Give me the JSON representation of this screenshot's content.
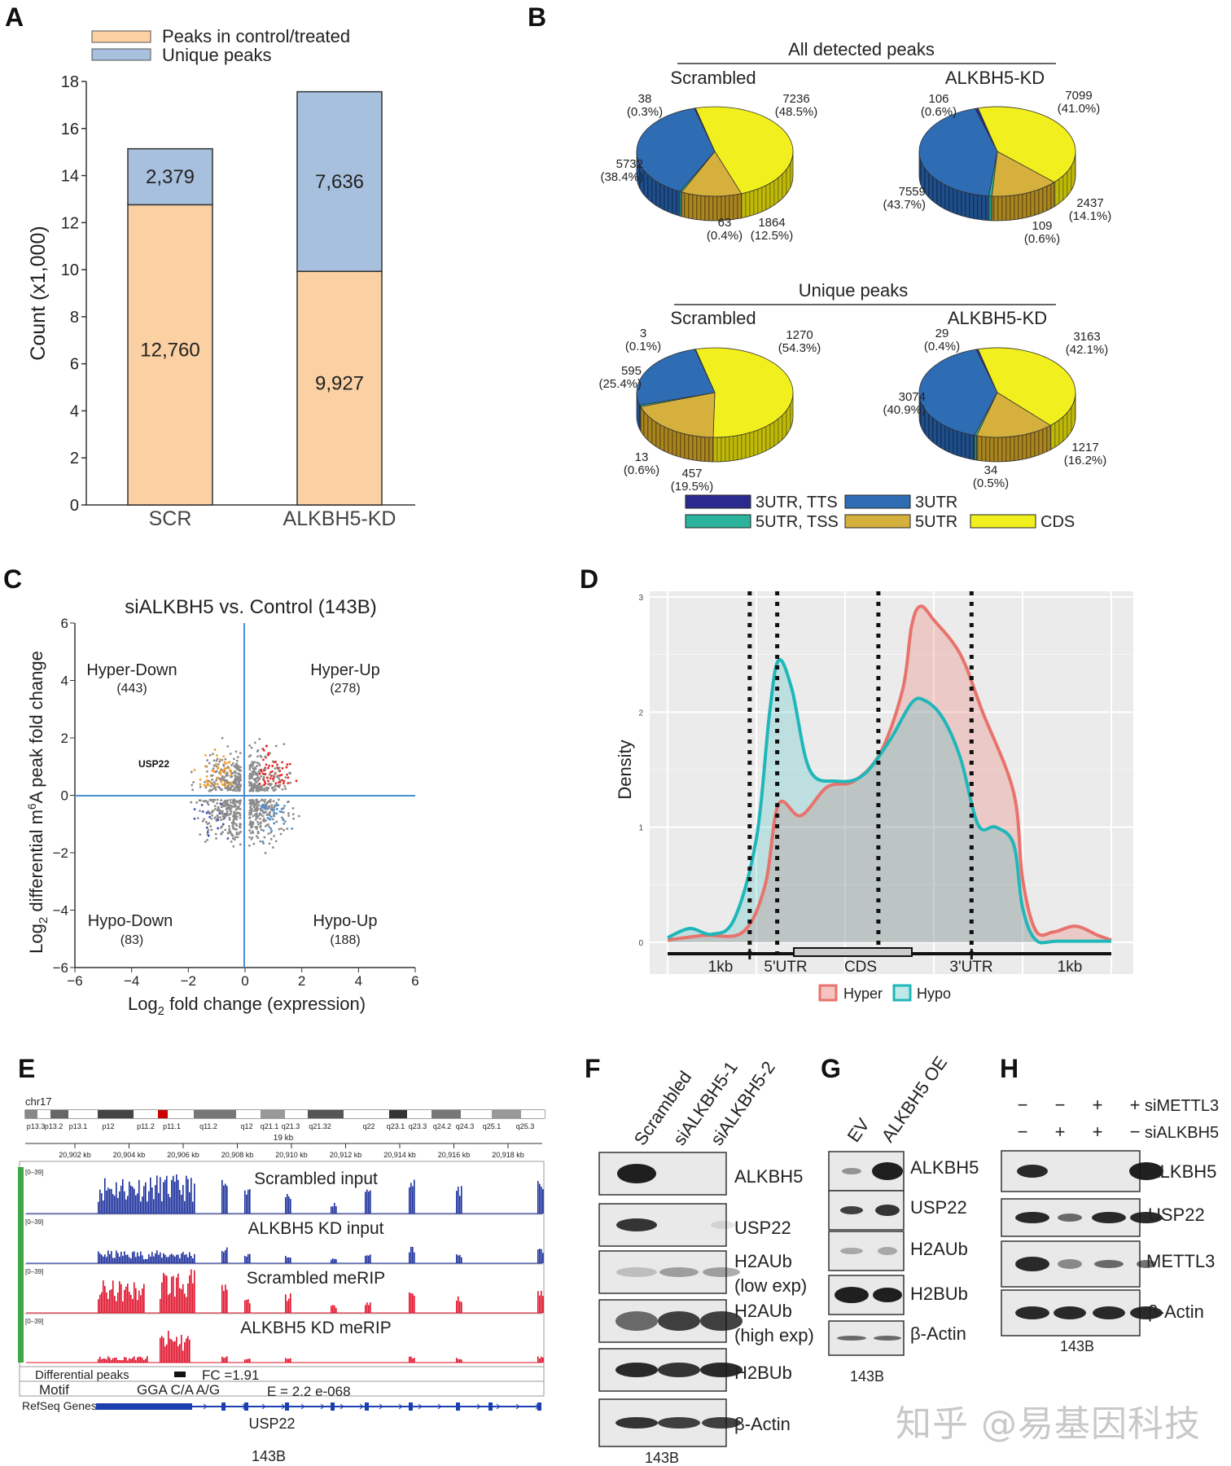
{
  "panels": {
    "A": "A",
    "B": "B",
    "C": "C",
    "D": "D",
    "E": "E",
    "F": "F",
    "G": "G",
    "H": "H"
  },
  "colors": {
    "control": "#fbd0a2",
    "unique": "#a7c0dd",
    "hyper": "#e8736c",
    "hypo": "#1fb7b9",
    "cds": "#f2ef1e",
    "utr3": "#2e6cb4",
    "utr5": "#d6b03d",
    "utr3tts": "#2b2b8f",
    "utr5tss": "#2bb39c"
  },
  "chart_data": [
    {
      "type": "bar",
      "panel": "A",
      "categories": [
        "SCR",
        "ALKBH5-KD"
      ],
      "series": [
        {
          "name": "Peaks in control/treated",
          "values": [
            12.76,
            9.927
          ],
          "labels": [
            "12,760",
            "9,927"
          ]
        },
        {
          "name": "Unique peaks",
          "values": [
            2.379,
            7.636
          ],
          "labels": [
            "2,379",
            "7,636"
          ]
        }
      ],
      "ylabel": "Count (x1,000)",
      "ylim": [
        0,
        18
      ],
      "yticks": [
        "0",
        "2",
        "4",
        "6",
        "8",
        "10",
        "12",
        "14",
        "16",
        "18"
      ],
      "stacked": true
    },
    {
      "type": "pie",
      "panel": "B",
      "groups": [
        {
          "title": "All detected peaks",
          "pies": [
            {
              "name": "Scrambled",
              "slices": [
                {
                  "label": "CDS",
                  "value": 7236,
                  "text": "7236",
                  "pct": "(48.5%)"
                },
                {
                  "label": "5UTR",
                  "value": 1864,
                  "text": "1864",
                  "pct": "(12.5%)"
                },
                {
                  "label": "5UTR, TSS",
                  "value": 63,
                  "text": "63",
                  "pct": "(0.4%)"
                },
                {
                  "label": "3UTR",
                  "value": 5732,
                  "text": "5732",
                  "pct": "(38.4%)"
                },
                {
                  "label": "3UTR, TTS",
                  "value": 38,
                  "text": "38",
                  "pct": "(0.3%)"
                }
              ]
            },
            {
              "name": "ALKBH5-KD",
              "slices": [
                {
                  "label": "CDS",
                  "value": 7099,
                  "text": "7099",
                  "pct": "(41.0%)"
                },
                {
                  "label": "5UTR",
                  "value": 2437,
                  "text": "2437",
                  "pct": "(14.1%)"
                },
                {
                  "label": "5UTR, TSS",
                  "value": 109,
                  "text": "109",
                  "pct": "(0.6%)"
                },
                {
                  "label": "3UTR",
                  "value": 7559,
                  "text": "7559",
                  "pct": "(43.7%)"
                },
                {
                  "label": "3UTR, TTS",
                  "value": 106,
                  "text": "106",
                  "pct": "(0.6%)"
                }
              ]
            }
          ]
        },
        {
          "title": "Unique peaks",
          "pies": [
            {
              "name": "Scrambled",
              "slices": [
                {
                  "label": "CDS",
                  "value": 1270,
                  "text": "1270",
                  "pct": "(54.3%)"
                },
                {
                  "label": "5UTR",
                  "value": 457,
                  "text": "457",
                  "pct": "(19.5%)"
                },
                {
                  "label": "5UTR, TSS",
                  "value": 13,
                  "text": "13",
                  "pct": "(0.6%)"
                },
                {
                  "label": "3UTR",
                  "value": 595,
                  "text": "595",
                  "pct": "(25.4%)"
                },
                {
                  "label": "3UTR, TTS",
                  "value": 3,
                  "text": "3",
                  "pct": "(0.1%)"
                }
              ]
            },
            {
              "name": "ALKBH5-KD",
              "slices": [
                {
                  "label": "CDS",
                  "value": 3163,
                  "text": "3163",
                  "pct": "(42.1%)"
                },
                {
                  "label": "5UTR",
                  "value": 1217,
                  "text": "1217",
                  "pct": "(16.2%)"
                },
                {
                  "label": "5UTR, TSS",
                  "value": 34,
                  "text": "34",
                  "pct": "(0.5%)"
                },
                {
                  "label": "3UTR",
                  "value": 3074,
                  "text": "3074",
                  "pct": "(40.9%)"
                },
                {
                  "label": "3UTR, TTS",
                  "value": 29,
                  "text": "29",
                  "pct": "(0.4%)"
                }
              ]
            }
          ]
        }
      ],
      "legend": [
        "3UTR, TTS",
        "3UTR",
        "5UTR, TSS",
        "5UTR",
        "CDS"
      ]
    },
    {
      "type": "scatter",
      "panel": "C",
      "title": "siALKBH5 vs. Control (143B)",
      "xlabel": "Log2 fold change (expression)",
      "ylabel": "Log2 differential m6A peak fold change",
      "xlim": [
        -6,
        6
      ],
      "ylim": [
        -6,
        6
      ],
      "ticks": [
        "−6",
        "−4",
        "−2",
        "0",
        "2",
        "4",
        "6"
      ],
      "quadrants": [
        {
          "name": "Hyper-Down",
          "count": "(443)"
        },
        {
          "name": "Hyper-Up",
          "count": "(278)"
        },
        {
          "name": "Hypo-Down",
          "count": "(83)"
        },
        {
          "name": "Hypo-Up",
          "count": "(188)"
        }
      ],
      "annotation": "USP22"
    },
    {
      "type": "area",
      "panel": "D",
      "ylabel": "Density",
      "yticks": [
        "0",
        "1",
        "2",
        "3"
      ],
      "ylim": [
        0,
        3
      ],
      "regions": [
        "1kb",
        "5'UTR",
        "CDS",
        "3'UTR",
        "1kb"
      ],
      "series": [
        {
          "name": "Hyper",
          "x": [
            0,
            0.08,
            0.17,
            0.22,
            0.25,
            0.3,
            0.36,
            0.42,
            0.48,
            0.53,
            0.55,
            0.57,
            0.6,
            0.66,
            0.71,
            0.78,
            0.8,
            0.83,
            0.87,
            0.92,
            0.97,
            1.0
          ],
          "y": [
            0.02,
            0.06,
            0.09,
            0.5,
            1.2,
            1.1,
            1.35,
            1.4,
            1.65,
            2.2,
            2.75,
            2.92,
            2.8,
            2.5,
            2.0,
            1.3,
            0.55,
            0.1,
            0.09,
            0.14,
            0.06,
            0.02
          ]
        },
        {
          "name": "Hypo",
          "x": [
            0,
            0.05,
            0.1,
            0.15,
            0.2,
            0.23,
            0.25,
            0.28,
            0.32,
            0.38,
            0.44,
            0.5,
            0.55,
            0.58,
            0.62,
            0.66,
            0.7,
            0.74,
            0.78,
            0.8,
            0.83,
            0.88,
            1.0
          ],
          "y": [
            0.04,
            0.12,
            0.07,
            0.2,
            0.9,
            2.0,
            2.45,
            2.2,
            1.5,
            1.4,
            1.45,
            1.75,
            2.08,
            2.1,
            1.95,
            1.6,
            1.02,
            1.0,
            0.85,
            0.3,
            0.02,
            0.01,
            0.01
          ]
        }
      ]
    }
  ],
  "panelE": {
    "chrom": "chr17",
    "bands": [
      "p13.3",
      "p13.2",
      "p13.1",
      "p12",
      "p11.2",
      "p11.1",
      "q11.2",
      "q12",
      "q21.1",
      "q21.3",
      "q21.32",
      "q22",
      "q23.1",
      "q23.3",
      "q24.2",
      "q24.3",
      "q25.1",
      "q25.3"
    ],
    "scale": "19 kb",
    "coords": [
      "20,902 kb",
      "20,904 kb",
      "20,906 kb",
      "20,908 kb",
      "20,910 kb",
      "20,912 kb",
      "20,914 kb",
      "20,916 kb",
      "20,918 kb"
    ],
    "range": "[0–39]",
    "tracks": [
      "Scrambled input",
      "ALKBH5 KD input",
      "Scrambled meRIP",
      "ALKBH5 KD meRIP"
    ],
    "diff": "Differential peaks",
    "fc": "FC =1.91",
    "motif_label": "Motif",
    "motif": "GGA C/A A/G",
    "evalue": "E = 2.2 e-068",
    "refseq": "RefSeq Genes",
    "gene": "USP22",
    "cell": "143B"
  },
  "panelF": {
    "lanes": [
      "Scrambled",
      "siALKBH5-1",
      "siALKBH5-2"
    ],
    "rows": [
      "ALKBH5",
      "USP22",
      "H2AUb",
      "(low exp)",
      "H2AUb",
      "(high exp)",
      "H2BUb",
      "β-Actin"
    ],
    "cell": "143B"
  },
  "panelG": {
    "lanes": [
      "EV",
      "ALKBH5 OE"
    ],
    "rows": [
      "ALKBH5",
      "USP22",
      "H2AUb",
      "H2BUb",
      "β-Actin"
    ],
    "cell": "143B"
  },
  "panelH": {
    "siMETTL3": [
      "−",
      "−",
      "+",
      "+"
    ],
    "siALKBH5": [
      "−",
      "+",
      "+",
      "−"
    ],
    "label1": "siMETTL3",
    "label2": "siALKBH5",
    "rows": [
      "ALKBH5",
      "USP22",
      "METTL3",
      "β-Actin"
    ],
    "cell": "143B"
  },
  "watermark": "知乎 @易基因科技"
}
